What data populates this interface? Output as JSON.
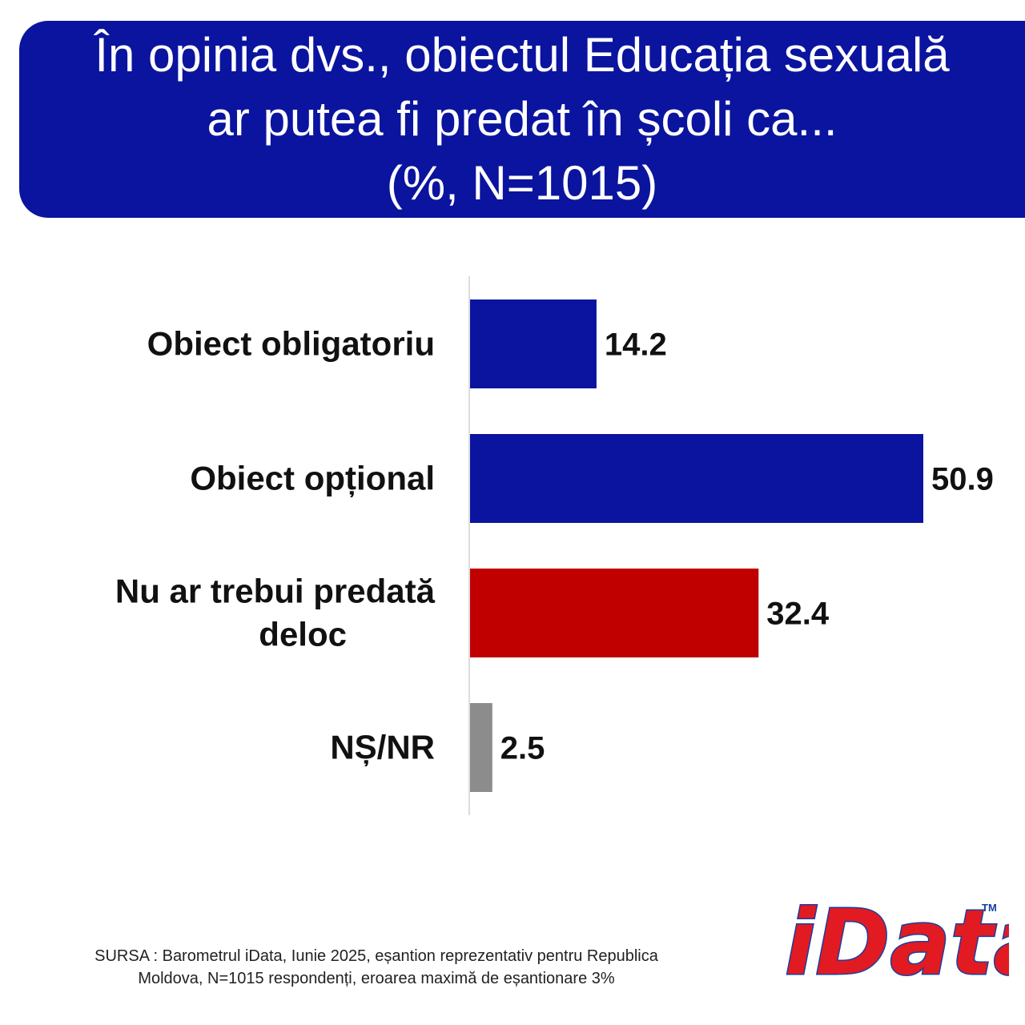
{
  "title": {
    "line1": "În opinia dvs., obiectul Educația sexuală",
    "line2": "ar putea fi predat în școli ca...",
    "line3": "(%, N=1015)"
  },
  "chart_data": {
    "type": "bar",
    "orientation": "horizontal",
    "categories": [
      [
        "Obiect obligatoriu"
      ],
      [
        "Obiect opțional"
      ],
      [
        "Nu ar trebui predată",
        "deloc"
      ],
      [
        "NȘ/NR"
      ]
    ],
    "values": [
      14.2,
      50.9,
      32.4,
      2.5
    ],
    "value_labels": [
      "14.2",
      "50.9",
      "32.4",
      "2.5"
    ],
    "colors": [
      "#0b149e",
      "#0b149e",
      "#c00000",
      "#8c8c8c"
    ],
    "xlim": [
      0,
      50.9
    ],
    "grid": false,
    "data_labels": true
  },
  "source": {
    "line1": "SURSA : Barometrul iData, Iunie 2025, eșantion reprezentativ pentru Republica",
    "line2": "Moldova, N=1015 respondenți, eroarea maximă de eșantionare 3%"
  },
  "logo": {
    "text": "iData",
    "mark": "TM"
  }
}
